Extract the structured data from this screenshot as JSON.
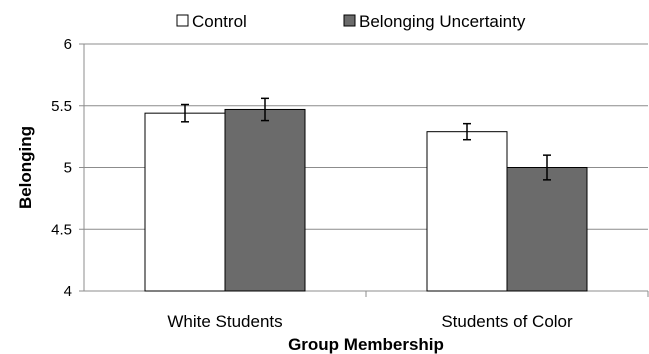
{
  "chart_data": {
    "type": "bar",
    "title": "",
    "xlabel": "Group Membership",
    "ylabel": "Belonging",
    "categories": [
      "White Students",
      "Students of Color"
    ],
    "ylim": [
      4,
      6
    ],
    "yticks": [
      "4",
      "4.5",
      "5",
      "5.5",
      "6"
    ],
    "grid": true,
    "legend_position": "top",
    "series": [
      {
        "name": "Control",
        "values": [
          5.44,
          5.29
        ],
        "errors": [
          0.07,
          0.065
        ],
        "color": "#ffffff"
      },
      {
        "name": "Belonging Uncertainty",
        "values": [
          5.47,
          5.0
        ],
        "errors": [
          0.09,
          0.1
        ],
        "color": "#6b6b6b"
      }
    ]
  }
}
